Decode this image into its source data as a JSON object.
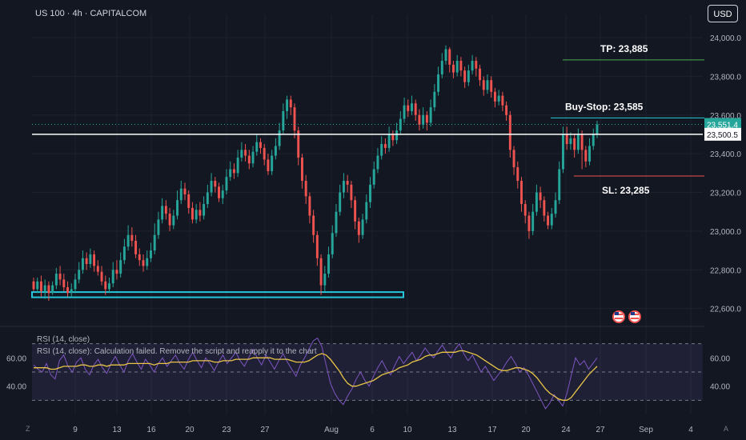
{
  "header": {
    "symbol": "US 100 · 4h · CAPITALCOM",
    "currency": "USD"
  },
  "indicators": {
    "rsi_label": "RSI (14, close)",
    "rsi_error": "RSI (14, close): Calculation failed. Remove the script and reapply it to the chart"
  },
  "corners": {
    "left": "Z",
    "right": "A"
  },
  "colors": {
    "background": "#131722",
    "up": "#26a69a",
    "down": "#ef5350",
    "rsi": "#7e57c2",
    "rsi_ma": "#e8c547",
    "zone": "#26c6da"
  },
  "icons": [
    "us-flag-icon",
    "us-flag-icon"
  ],
  "chart_data": {
    "type": "candlestick",
    "price_axis": {
      "ylim": [
        22520,
        24120
      ],
      "ticks": [
        "24,000.0",
        "23,800.0",
        "23,600.0",
        "23,400.0",
        "23,200.0",
        "23,000.0",
        "22,800.0",
        "22,600.0"
      ]
    },
    "time_axis": {
      "ticks": [
        "9",
        "13",
        "16",
        "20",
        "23",
        "27",
        "Aug",
        "6",
        "10",
        "13",
        "17",
        "20",
        "24",
        "27",
        "Sep",
        "4"
      ]
    },
    "markers": {
      "current_price": "23,551.4",
      "level_price": "23,500.5"
    },
    "annotations": [
      {
        "text": "TP: 23,885",
        "price": 23885,
        "color": "#4caf50"
      },
      {
        "text": "Buy-Stop: 23,585",
        "price": 23585,
        "color": "#26c6da"
      },
      {
        "text": "SL: 23,285",
        "price": 23285,
        "color": "#ef5350"
      }
    ],
    "support_zone": {
      "low": 22658,
      "high": 22685
    },
    "candles": [
      [
        22740,
        22700,
        22760,
        22690
      ],
      [
        22700,
        22740,
        22760,
        22680
      ],
      [
        22740,
        22690,
        22770,
        22660
      ],
      [
        22690,
        22720,
        22750,
        22650
      ],
      [
        22720,
        22680,
        22740,
        22640
      ],
      [
        22680,
        22720,
        22740,
        22670
      ],
      [
        22720,
        22780,
        22810,
        22700
      ],
      [
        22780,
        22750,
        22820,
        22720
      ],
      [
        22750,
        22710,
        22780,
        22690
      ],
      [
        22710,
        22680,
        22740,
        22660
      ],
      [
        22680,
        22700,
        22730,
        22660
      ],
      [
        22700,
        22750,
        22780,
        22680
      ],
      [
        22750,
        22800,
        22840,
        22730
      ],
      [
        22800,
        22860,
        22900,
        22780
      ],
      [
        22860,
        22830,
        22890,
        22800
      ],
      [
        22830,
        22880,
        22910,
        22810
      ],
      [
        22880,
        22820,
        22900,
        22790
      ],
      [
        22820,
        22790,
        22850,
        22770
      ],
      [
        22790,
        22740,
        22820,
        22720
      ],
      [
        22740,
        22700,
        22770,
        22670
      ],
      [
        22700,
        22730,
        22760,
        22680
      ],
      [
        22730,
        22800,
        22840,
        22710
      ],
      [
        22800,
        22780,
        22850,
        22750
      ],
      [
        22780,
        22850,
        22890,
        22760
      ],
      [
        22850,
        22920,
        22960,
        22830
      ],
      [
        22920,
        22980,
        23030,
        22900
      ],
      [
        22980,
        22950,
        23020,
        22920
      ],
      [
        22950,
        22880,
        22980,
        22860
      ],
      [
        22880,
        22850,
        22910,
        22820
      ],
      [
        22850,
        22820,
        22880,
        22790
      ],
      [
        22820,
        22860,
        22900,
        22800
      ],
      [
        22860,
        22900,
        22940,
        22840
      ],
      [
        22900,
        22980,
        23040,
        22880
      ],
      [
        22980,
        23060,
        23100,
        22960
      ],
      [
        23060,
        23130,
        23170,
        23040
      ],
      [
        23130,
        23090,
        23160,
        23060
      ],
      [
        23090,
        23030,
        23120,
        23000
      ],
      [
        23030,
        23080,
        23110,
        23010
      ],
      [
        23080,
        23160,
        23210,
        23060
      ],
      [
        23160,
        23220,
        23260,
        23140
      ],
      [
        23220,
        23190,
        23250,
        23160
      ],
      [
        23190,
        23120,
        23210,
        23090
      ],
      [
        23120,
        23060,
        23150,
        23040
      ],
      [
        23060,
        23110,
        23140,
        23040
      ],
      [
        23110,
        23080,
        23150,
        23050
      ],
      [
        23080,
        23140,
        23180,
        23060
      ],
      [
        23140,
        23200,
        23240,
        23120
      ],
      [
        23200,
        23260,
        23300,
        23180
      ],
      [
        23260,
        23230,
        23280,
        23200
      ],
      [
        23230,
        23170,
        23250,
        23150
      ],
      [
        23170,
        23210,
        23240,
        23140
      ],
      [
        23210,
        23280,
        23320,
        23190
      ],
      [
        23280,
        23320,
        23360,
        23260
      ],
      [
        23320,
        23300,
        23350,
        23270
      ],
      [
        23300,
        23380,
        23420,
        23280
      ],
      [
        23380,
        23420,
        23460,
        23360
      ],
      [
        23420,
        23390,
        23450,
        23360
      ],
      [
        23390,
        23350,
        23420,
        23320
      ],
      [
        23350,
        23410,
        23440,
        23330
      ],
      [
        23410,
        23460,
        23500,
        23390
      ],
      [
        23460,
        23430,
        23480,
        23400
      ],
      [
        23430,
        23370,
        23450,
        23340
      ],
      [
        23370,
        23310,
        23400,
        23290
      ],
      [
        23310,
        23390,
        23420,
        23290
      ],
      [
        23390,
        23440,
        23480,
        23370
      ],
      [
        23440,
        23520,
        23560,
        23420
      ],
      [
        23520,
        23620,
        23660,
        23500
      ],
      [
        23620,
        23680,
        23700,
        23580
      ],
      [
        23680,
        23640,
        23700,
        23600
      ],
      [
        23640,
        23520,
        23660,
        23480
      ],
      [
        23520,
        23380,
        23540,
        23340
      ],
      [
        23380,
        23260,
        23400,
        23220
      ],
      [
        23260,
        23180,
        23290,
        23140
      ],
      [
        23180,
        23080,
        23200,
        23040
      ],
      [
        23080,
        22980,
        23110,
        22940
      ],
      [
        22980,
        22860,
        23000,
        22820
      ],
      [
        22860,
        22720,
        22880,
        22670
      ],
      [
        22720,
        22780,
        22820,
        22690
      ],
      [
        22780,
        22880,
        22920,
        22760
      ],
      [
        22880,
        22990,
        23030,
        22860
      ],
      [
        22990,
        23100,
        23140,
        22970
      ],
      [
        23100,
        23200,
        23240,
        23080
      ],
      [
        23200,
        23260,
        23300,
        23170
      ],
      [
        23260,
        23240,
        23290,
        23200
      ],
      [
        23240,
        23160,
        23260,
        23120
      ],
      [
        23160,
        23050,
        23180,
        23010
      ],
      [
        23050,
        22980,
        23070,
        22940
      ],
      [
        22980,
        23060,
        23090,
        22960
      ],
      [
        23060,
        23150,
        23190,
        23040
      ],
      [
        23150,
        23240,
        23280,
        23120
      ],
      [
        23240,
        23320,
        23360,
        23220
      ],
      [
        23320,
        23390,
        23430,
        23300
      ],
      [
        23390,
        23450,
        23490,
        23370
      ],
      [
        23450,
        23430,
        23480,
        23400
      ],
      [
        23430,
        23500,
        23540,
        23410
      ],
      [
        23500,
        23470,
        23520,
        23440
      ],
      [
        23470,
        23520,
        23560,
        23450
      ],
      [
        23520,
        23580,
        23620,
        23500
      ],
      [
        23580,
        23650,
        23690,
        23560
      ],
      [
        23650,
        23620,
        23680,
        23590
      ],
      [
        23620,
        23660,
        23700,
        23600
      ],
      [
        23660,
        23600,
        23680,
        23570
      ],
      [
        23600,
        23550,
        23630,
        23520
      ],
      [
        23550,
        23600,
        23640,
        23530
      ],
      [
        23600,
        23560,
        23620,
        23520
      ],
      [
        23560,
        23640,
        23680,
        23540
      ],
      [
        23640,
        23720,
        23760,
        23620
      ],
      [
        23720,
        23810,
        23850,
        23700
      ],
      [
        23810,
        23880,
        23920,
        23790
      ],
      [
        23880,
        23940,
        23960,
        23860
      ],
      [
        23940,
        23860,
        23950,
        23820
      ],
      [
        23860,
        23820,
        23880,
        23790
      ],
      [
        23820,
        23880,
        23910,
        23800
      ],
      [
        23880,
        23830,
        23900,
        23800
      ],
      [
        23830,
        23770,
        23850,
        23740
      ],
      [
        23770,
        23830,
        23860,
        23750
      ],
      [
        23830,
        23880,
        23910,
        23810
      ],
      [
        23880,
        23840,
        23900,
        23800
      ],
      [
        23840,
        23780,
        23860,
        23750
      ],
      [
        23780,
        23730,
        23800,
        23700
      ],
      [
        23730,
        23780,
        23810,
        23710
      ],
      [
        23780,
        23720,
        23800,
        23690
      ],
      [
        23720,
        23670,
        23740,
        23640
      ],
      [
        23670,
        23700,
        23730,
        23650
      ],
      [
        23700,
        23650,
        23720,
        23620
      ],
      [
        23650,
        23600,
        23670,
        23570
      ],
      [
        23600,
        23420,
        23620,
        23380
      ],
      [
        23420,
        23330,
        23440,
        23290
      ],
      [
        23330,
        23260,
        23360,
        23220
      ],
      [
        23260,
        23140,
        23280,
        23100
      ],
      [
        23140,
        23080,
        23160,
        23040
      ],
      [
        23080,
        23000,
        23100,
        22960
      ],
      [
        23000,
        23100,
        23140,
        22980
      ],
      [
        23100,
        23200,
        23240,
        23080
      ],
      [
        23200,
        23160,
        23230,
        23120
      ],
      [
        23160,
        23080,
        23180,
        23050
      ],
      [
        23080,
        23030,
        23100,
        23010
      ],
      [
        23030,
        23090,
        23120,
        23010
      ],
      [
        23090,
        23160,
        23200,
        23070
      ],
      [
        23160,
        23320,
        23360,
        23140
      ],
      [
        23320,
        23500,
        23540,
        23300
      ],
      [
        23500,
        23450,
        23540,
        23420
      ],
      [
        23450,
        23480,
        23510,
        23420
      ],
      [
        23480,
        23420,
        23500,
        23380
      ],
      [
        23420,
        23500,
        23530,
        23400
      ],
      [
        23500,
        23420,
        23520,
        23320
      ],
      [
        23420,
        23360,
        23440,
        23330
      ],
      [
        23360,
        23440,
        23480,
        23340
      ],
      [
        23440,
        23500,
        23530,
        23420
      ],
      [
        23500,
        23551,
        23570,
        23480
      ]
    ],
    "rsi": {
      "ticks": [
        "60.00",
        "40.00"
      ],
      "ylim": [
        20,
        80
      ],
      "levels": [
        70,
        50,
        30
      ],
      "values": [
        55,
        52,
        50,
        56,
        48,
        45,
        58,
        62,
        54,
        50,
        57,
        60,
        52,
        48,
        55,
        59,
        53,
        49,
        56,
        61,
        55,
        50,
        58,
        63,
        57,
        52,
        59,
        55,
        50,
        56,
        60,
        54,
        58,
        62,
        56,
        52,
        59,
        64,
        58,
        53,
        60,
        56,
        51,
        57,
        62,
        56,
        60,
        64,
        58,
        54,
        60,
        66,
        60,
        55,
        62,
        57,
        52,
        58,
        63,
        57,
        52,
        47,
        55,
        60,
        66,
        72,
        74,
        68,
        55,
        42,
        35,
        30,
        27,
        33,
        38,
        45,
        50,
        44,
        40,
        47,
        53,
        58,
        52,
        48,
        55,
        61,
        56,
        60,
        64,
        58,
        62,
        67,
        63,
        60,
        65,
        69,
        64,
        60,
        66,
        70,
        63,
        58,
        62,
        56,
        50,
        54,
        49,
        44,
        48,
        52,
        57,
        61,
        56,
        50,
        53,
        48,
        42,
        36,
        30,
        24,
        28,
        34,
        30,
        26,
        35,
        48,
        60,
        55,
        58,
        52,
        56,
        60
      ],
      "ma": [
        53,
        53,
        53,
        53,
        52,
        52,
        53,
        54,
        54,
        54,
        54,
        55,
        55,
        54,
        54,
        55,
        55,
        54,
        55,
        55,
        55,
        55,
        56,
        56,
        56,
        56,
        56,
        56,
        55,
        56,
        56,
        56,
        57,
        57,
        57,
        57,
        57,
        58,
        58,
        58,
        58,
        58,
        57,
        57,
        58,
        58,
        58,
        59,
        59,
        59,
        59,
        60,
        60,
        60,
        60,
        60,
        59,
        59,
        59,
        59,
        58,
        57,
        57,
        57,
        58,
        60,
        62,
        63,
        62,
        59,
        55,
        51,
        46,
        42,
        40,
        40,
        41,
        42,
        43,
        44,
        46,
        48,
        49,
        50,
        51,
        53,
        54,
        55,
        57,
        58,
        59,
        61,
        62,
        62,
        63,
        64,
        64,
        64,
        64,
        65,
        65,
        64,
        63,
        62,
        60,
        58,
        56,
        54,
        52,
        51,
        51,
        52,
        53,
        53,
        52,
        51,
        49,
        46,
        42,
        38,
        35,
        33,
        31,
        30,
        30,
        32,
        36,
        40,
        44,
        48,
        51,
        54
      ]
    }
  }
}
